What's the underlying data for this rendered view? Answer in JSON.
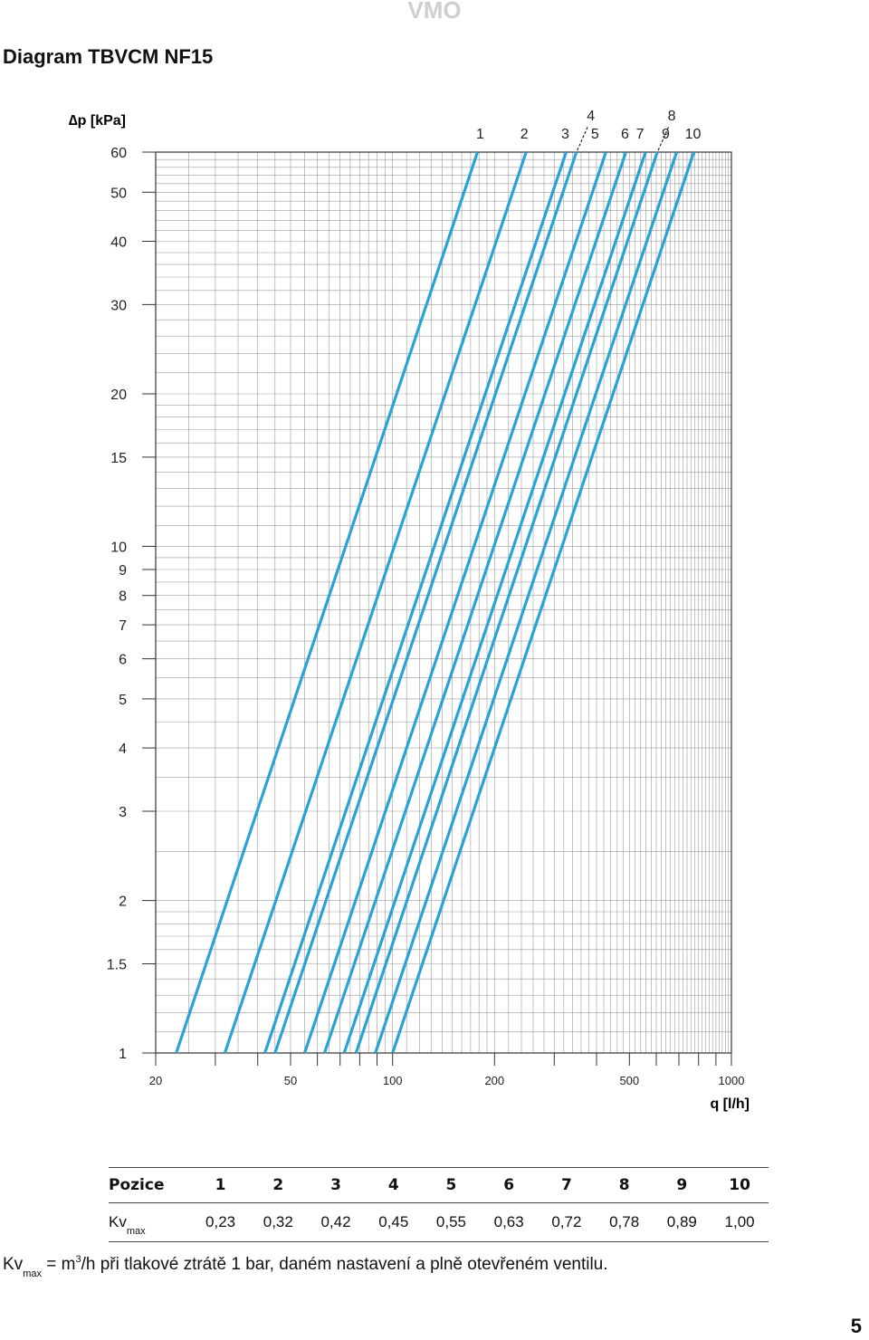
{
  "header": {
    "brand": "VMO",
    "title": "Diagram TBVCM NF15"
  },
  "chart_data": {
    "type": "line",
    "x_scale": "log",
    "y_scale": "log",
    "xlabel": "q [l/h]",
    "ylabel": "∆p [kPa]",
    "xlim": [
      20,
      1000
    ],
    "ylim": [
      1,
      60
    ],
    "x_ticks": [
      20,
      50,
      100,
      200,
      500,
      1000
    ],
    "x_tick_labels": [
      "20",
      "50",
      "100",
      "200",
      "500",
      "1000"
    ],
    "y_ticks": [
      1,
      1.5,
      2,
      3,
      4,
      5,
      6,
      7,
      8,
      9,
      10,
      15,
      20,
      30,
      40,
      50,
      60
    ],
    "y_tick_labels": [
      "1",
      "1.5",
      "2",
      "3",
      "4",
      "5",
      "6",
      "7",
      "8",
      "9",
      "10",
      "15",
      "20",
      "30",
      "40",
      "50",
      "60"
    ],
    "grid": true,
    "series": [
      {
        "name": "1",
        "kv": 0.23
      },
      {
        "name": "2",
        "kv": 0.32
      },
      {
        "name": "3",
        "kv": 0.42
      },
      {
        "name": "4",
        "kv": 0.45
      },
      {
        "name": "5",
        "kv": 0.55
      },
      {
        "name": "6",
        "kv": 0.63
      },
      {
        "name": "7",
        "kv": 0.72
      },
      {
        "name": "8",
        "kv": 0.78
      },
      {
        "name": "9",
        "kv": 0.89
      },
      {
        "name": "10",
        "kv": 1.0
      }
    ],
    "line_color": "#2aa3d4"
  },
  "table": {
    "head_label": "Pozice",
    "positions": [
      "1",
      "2",
      "3",
      "4",
      "5",
      "6",
      "7",
      "8",
      "9",
      "10"
    ],
    "kv_label": "Kv",
    "kv_sub": "max",
    "kv_values": [
      "0,23",
      "0,32",
      "0,42",
      "0,45",
      "0,55",
      "0,63",
      "0,72",
      "0,78",
      "0,89",
      "1,00"
    ]
  },
  "footnote": {
    "kv": "Kv",
    "sub": "max",
    "pre": " = m",
    "sup": "3",
    "post": "/h při tlakové ztrátě 1 bar, daném nastavení a plně otevřeném ventilu."
  },
  "page_number": "5"
}
